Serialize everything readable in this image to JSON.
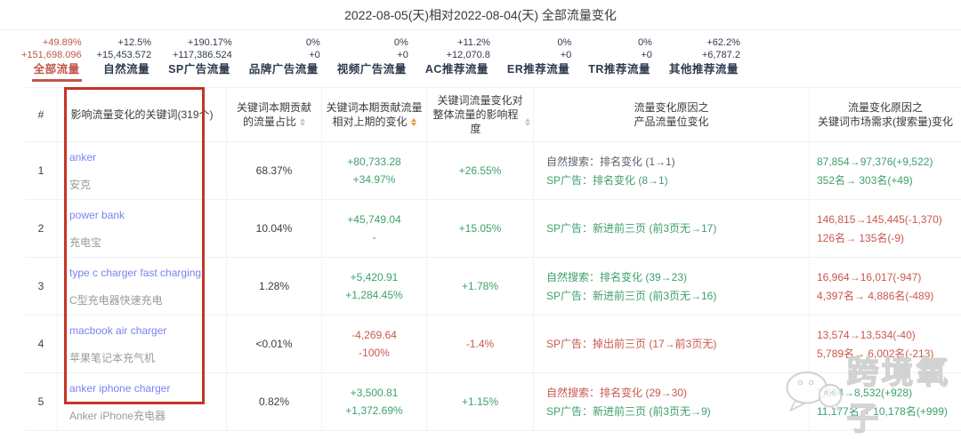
{
  "title": "2022-08-05(天)相对2022-08-04(天) 全部流量变化",
  "colors": {
    "accent_red": "#c0564a",
    "green": "#3fa06e",
    "down_red": "#c9584e",
    "link_blue": "#7a82f0",
    "box_red": "#c33528",
    "sorter_active_orange": "#e39a3e"
  },
  "tabs": [
    {
      "pct": "+49.89%",
      "value": "+151,698.096",
      "label": "全部流量",
      "active": true
    },
    {
      "pct": "+12.5%",
      "value": "+15,453.572",
      "label": "自然流量",
      "active": false
    },
    {
      "pct": "+190.17%",
      "value": "+117,386.524",
      "label": "SP广告流量",
      "active": false
    },
    {
      "pct": "0%",
      "value": "+0",
      "label": "品牌广告流量",
      "active": false
    },
    {
      "pct": "0%",
      "value": "+0",
      "label": "视频广告流量",
      "active": false
    },
    {
      "pct": "+11.2%",
      "value": "+12,070.8",
      "label": "AC推荐流量",
      "active": false
    },
    {
      "pct": "0%",
      "value": "+0",
      "label": "ER推荐流量",
      "active": false
    },
    {
      "pct": "0%",
      "value": "+0",
      "label": "TR推荐流量",
      "active": false
    },
    {
      "pct": "+62.2%",
      "value": "+6,787.2",
      "label": "其他推荐流量",
      "active": false
    }
  ],
  "table": {
    "headers": [
      {
        "lines": [
          "#"
        ],
        "sorter": null
      },
      {
        "lines": [
          "影响流量变化的关键词(319个)"
        ],
        "sorter": null
      },
      {
        "lines": [
          "关键词本期贡献",
          "的流量占比"
        ],
        "sorter": "grey"
      },
      {
        "lines": [
          "关键词本期贡献流量",
          "相对上期的变化"
        ],
        "sorter": "orange"
      },
      {
        "lines": [
          "关键词流量变化对",
          "整体流量的影响程度"
        ],
        "sorter": "grey"
      },
      {
        "lines": [
          "流量变化原因之",
          "产品流量位变化"
        ],
        "sorter": null
      },
      {
        "lines": [
          "流量变化原因之",
          "关键词市场需求(搜索量)变化"
        ],
        "sorter": null
      }
    ],
    "rows": [
      {
        "index": "1",
        "keyword": "anker",
        "keyword_cn": "安克",
        "share": "68.37%",
        "change": [
          {
            "text": "+80,733.28",
            "tone": "up"
          },
          {
            "text": "+34.97%",
            "tone": "up"
          }
        ],
        "impact": {
          "text": "+26.55%",
          "tone": "up"
        },
        "reasons": [
          {
            "text": "自然搜索：排名变化 (1→1)",
            "tone": "neutral"
          },
          {
            "text": "SP广告：排名变化 (8→1)",
            "tone": "up"
          }
        ],
        "market": [
          {
            "text": "87,854→97,376(+9,522)",
            "tone": "up"
          },
          {
            "text": "352名→ 303名(+49)",
            "tone": "up"
          }
        ]
      },
      {
        "index": "2",
        "keyword": "power bank",
        "keyword_cn": "充电宝",
        "share": "10.04%",
        "change": [
          {
            "text": "+45,749.04",
            "tone": "up"
          },
          {
            "text": "-",
            "tone": "up"
          }
        ],
        "impact": {
          "text": "+15.05%",
          "tone": "up"
        },
        "reasons": [
          {
            "text": "SP广告：新进前三页 (前3页无→17)",
            "tone": "up"
          }
        ],
        "market": [
          {
            "text": "146,815→145,445(-1,370)",
            "tone": "down"
          },
          {
            "text": "126名→ 135名(-9)",
            "tone": "down"
          }
        ]
      },
      {
        "index": "3",
        "keyword": "type c charger fast charging",
        "keyword_cn": "C型充电器快速充电",
        "share": "1.28%",
        "change": [
          {
            "text": "+5,420.91",
            "tone": "up"
          },
          {
            "text": "+1,284.45%",
            "tone": "up"
          }
        ],
        "impact": {
          "text": "+1.78%",
          "tone": "up"
        },
        "reasons": [
          {
            "text": "自然搜索：排名变化 (39→23)",
            "tone": "up"
          },
          {
            "text": "SP广告：新进前三页 (前3页无→16)",
            "tone": "up"
          }
        ],
        "market": [
          {
            "text": "16,964→16,017(-947)",
            "tone": "down"
          },
          {
            "text": "4,397名→ 4,886名(-489)",
            "tone": "down"
          }
        ]
      },
      {
        "index": "4",
        "keyword": "macbook air charger",
        "keyword_cn": "苹果笔记本充气机",
        "share": "<0.01%",
        "change": [
          {
            "text": "-4,269.64",
            "tone": "down"
          },
          {
            "text": "-100%",
            "tone": "down"
          }
        ],
        "impact": {
          "text": "-1.4%",
          "tone": "down"
        },
        "reasons": [
          {
            "text": "SP广告：掉出前三页 (17→前3页无)",
            "tone": "down"
          }
        ],
        "market": [
          {
            "text": "13,574→13,534(-40)",
            "tone": "down"
          },
          {
            "text": "5,789名→ 6,002名(-213)",
            "tone": "down"
          }
        ]
      },
      {
        "index": "5",
        "keyword": "anker iphone charger",
        "keyword_cn": "Anker iPhone充电器",
        "share": "0.82%",
        "change": [
          {
            "text": "+3,500.81",
            "tone": "up"
          },
          {
            "text": "+1,372.69%",
            "tone": "up"
          }
        ],
        "impact": {
          "text": "+1.15%",
          "tone": "up"
        },
        "reasons": [
          {
            "text": "自然搜索：排名变化 (29→30)",
            "tone": "down"
          },
          {
            "text": "SP广告：新进前三页 (前3页无→9)",
            "tone": "up"
          }
        ],
        "market": [
          {
            "text": "7,604→8,532(+928)",
            "tone": "up"
          },
          {
            "text": "11,177名→ 10,178名(+999)",
            "tone": "up"
          }
        ]
      }
    ]
  },
  "watermark": {
    "text": "跨境氧子",
    "logo": "chat-bubbles-icon"
  }
}
